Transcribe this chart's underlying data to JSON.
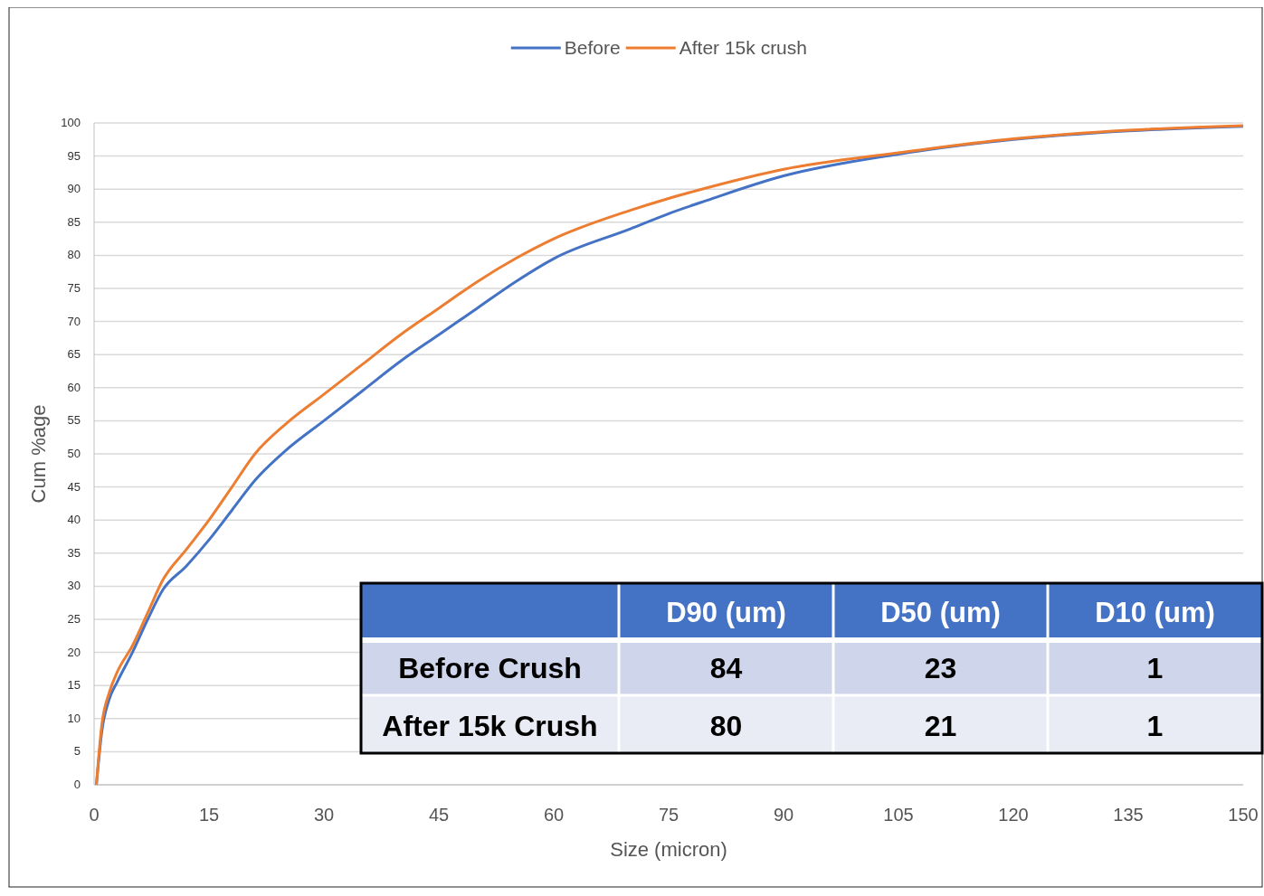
{
  "chart_data": {
    "type": "line",
    "xlabel": "Size (micron)",
    "ylabel": "Cum %age",
    "xlim": [
      0,
      150
    ],
    "xticks": [
      0,
      15,
      30,
      45,
      60,
      75,
      90,
      105,
      120,
      135,
      150
    ],
    "ylim": [
      0,
      100
    ],
    "yticks": [
      0,
      5,
      10,
      15,
      20,
      25,
      30,
      35,
      40,
      45,
      50,
      55,
      60,
      65,
      70,
      75,
      80,
      85,
      90,
      95,
      100
    ],
    "grid": "y",
    "legend": "top",
    "line_style": "solid",
    "series": [
      {
        "name": "Before",
        "color": "#4472c4",
        "x": [
          0.3,
          1,
          2,
          3,
          5,
          7,
          9,
          12,
          15,
          18,
          21,
          25,
          30,
          35,
          40,
          45,
          50,
          55,
          60,
          70,
          75,
          80,
          90,
          105,
          120,
          135,
          150
        ],
        "values": [
          0,
          8,
          13,
          15.5,
          20,
          25,
          29.5,
          33,
          37,
          41.5,
          46,
          50.5,
          55,
          59.5,
          64,
          68,
          72,
          76,
          79.5,
          84,
          86.3,
          88.3,
          92,
          95.3,
          97.5,
          98.8,
          99.5
        ]
      },
      {
        "name": "After 15k crush",
        "color": "#ed7d31",
        "x": [
          0.3,
          1,
          2,
          3,
          5,
          7,
          9,
          12,
          15,
          18,
          21,
          25,
          30,
          35,
          40,
          45,
          50,
          55,
          60,
          70,
          75,
          80,
          90,
          105,
          120,
          135,
          150
        ],
        "values": [
          0,
          9,
          14,
          17,
          21,
          26,
          31,
          35.5,
          40,
          45,
          50,
          54.5,
          59,
          63.5,
          68,
          72,
          76,
          79.5,
          82.5,
          86.8,
          88.6,
          90.2,
          93,
          95.5,
          97.6,
          98.9,
          99.6
        ]
      }
    ],
    "annotations": [
      "D90 (um)",
      "D50 (um)",
      "D10 (um)",
      "Before Crush",
      "84",
      "23",
      "1",
      "After 15k Crush",
      "80",
      "21",
      "1"
    ]
  }
}
